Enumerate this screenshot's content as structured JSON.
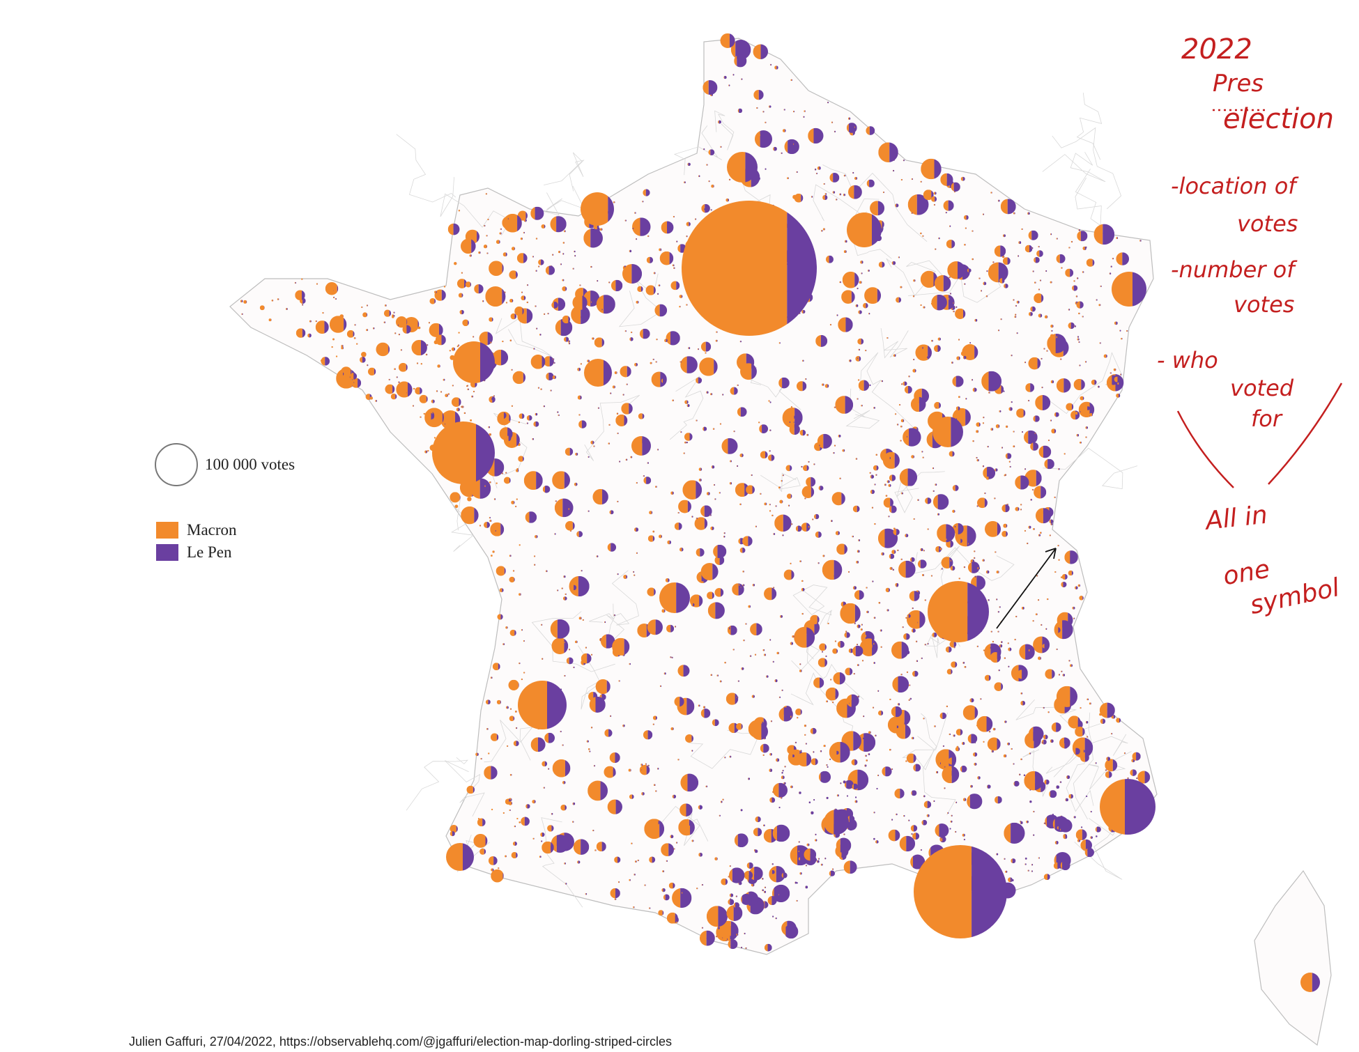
{
  "legend": {
    "size_label": "100 000 votes",
    "size_value": 100000,
    "categories": [
      {
        "name": "Macron",
        "color": "#f28a2c"
      },
      {
        "name": "Le Pen",
        "color": "#6a3fa0"
      }
    ]
  },
  "credit": "Julien Gaffuri, 27/04/2022, https://observablehq.com/@jgaffuri/election-map-dorling-striped-circles",
  "annotations": {
    "title_line1": "2022",
    "title_line2": "Pres",
    "title_line3": "election",
    "items": [
      "-location of",
      "votes",
      "-number of",
      "votes",
      "- who",
      "voted",
      "for"
    ],
    "summary": [
      "All in",
      "one",
      "symbol"
    ],
    "ink_color": "#c41f1f"
  },
  "style": {
    "border_color": "#bdbdbd",
    "background": "#ffffff"
  }
}
